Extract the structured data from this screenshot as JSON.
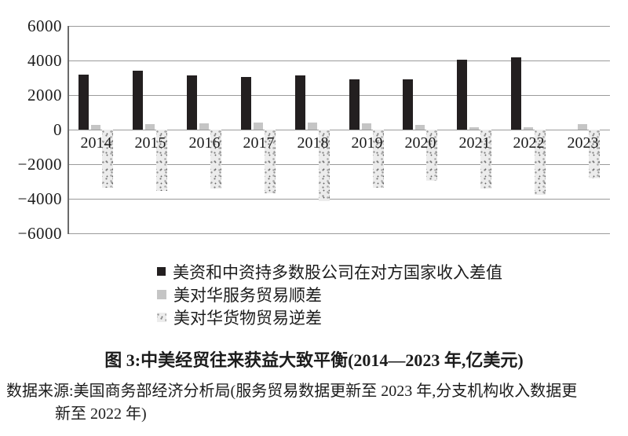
{
  "figure": {
    "title": "图 3:中美经贸往来获益大致平衡(2014—2023 年,亿美元)",
    "source_line1": "数据来源:美国商务部经济分析局(服务贸易数据更新至 2023 年,分支机构收入数据更",
    "source_line2": "新至 2022 年)"
  },
  "chart_data": {
    "type": "bar",
    "unit": "亿美元",
    "categories": [
      "2014",
      "2015",
      "2016",
      "2017",
      "2018",
      "2019",
      "2020",
      "2021",
      "2022",
      "2023"
    ],
    "series": [
      {
        "name": "美资和中资持多数股公司在对方国家收入差值",
        "style": "solid-black",
        "color": "#231f20",
        "values": [
          3200,
          3400,
          3150,
          3050,
          3150,
          2900,
          2900,
          4050,
          4200,
          null
        ]
      },
      {
        "name": "美对华服务贸易顺差",
        "style": "solid-light-gray",
        "color": "#c5c5c5",
        "values": [
          270,
          300,
          380,
          390,
          400,
          360,
          250,
          150,
          120,
          300
        ]
      },
      {
        "name": "美对华货物贸易逆差",
        "style": "speckled-gray",
        "color": "#ececec",
        "values": [
          -3350,
          -3550,
          -3400,
          -3700,
          -4150,
          -3350,
          -2950,
          -3400,
          -3750,
          -2800
        ]
      }
    ],
    "ylim": [
      -6000,
      6000
    ],
    "ytick_interval": 2000,
    "yticks": [
      "6000",
      "4000",
      "2000",
      "0",
      "−2000",
      "−4000",
      "−6000"
    ],
    "grid": true,
    "legend_position": "bottom-left"
  }
}
